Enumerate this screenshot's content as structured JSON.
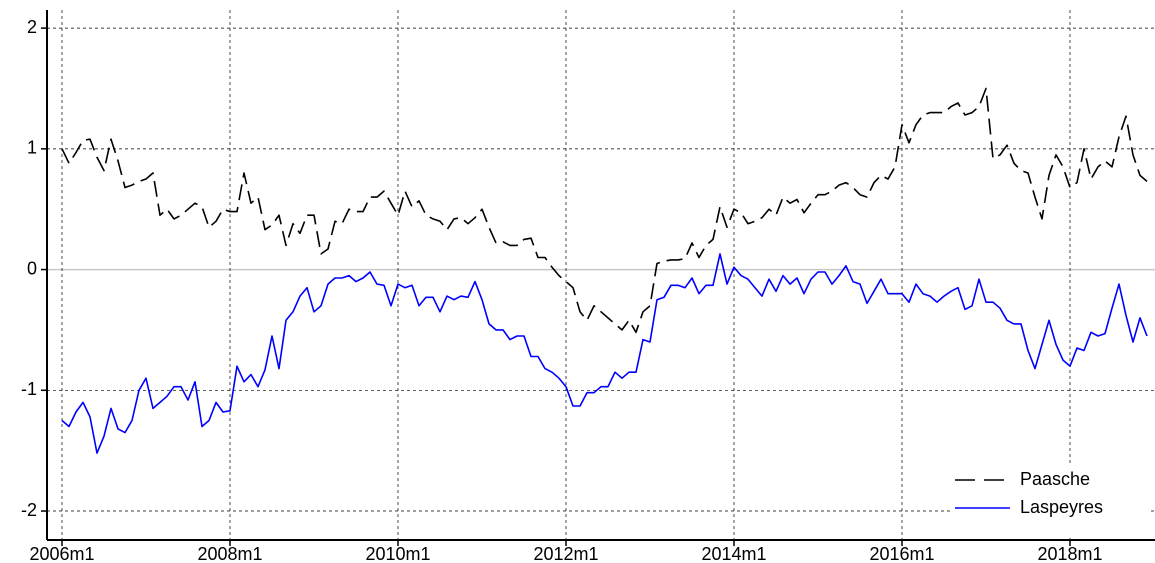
{
  "chart_data": {
    "type": "line",
    "categories": [
      "2006m1",
      null,
      null,
      null,
      null,
      null,
      null,
      null,
      null,
      null,
      null,
      null,
      null,
      null,
      null,
      null,
      null,
      null,
      null,
      null,
      null,
      null,
      null,
      null,
      "2008m1",
      null,
      null,
      null,
      null,
      null,
      null,
      null,
      null,
      null,
      null,
      null,
      null,
      null,
      null,
      null,
      null,
      null,
      null,
      null,
      null,
      null,
      null,
      null,
      "2010m1",
      null,
      null,
      null,
      null,
      null,
      null,
      null,
      null,
      null,
      null,
      null,
      null,
      null,
      null,
      null,
      null,
      null,
      null,
      null,
      null,
      null,
      null,
      null,
      "2012m1",
      null,
      null,
      null,
      null,
      null,
      null,
      null,
      null,
      null,
      null,
      null,
      null,
      null,
      null,
      null,
      null,
      null,
      null,
      null,
      null,
      null,
      null,
      null,
      "2014m1",
      null,
      null,
      null,
      null,
      null,
      null,
      null,
      null,
      null,
      null,
      null,
      null,
      null,
      null,
      null,
      null,
      null,
      null,
      null,
      null,
      null,
      null,
      null,
      "2016m1",
      null,
      null,
      null,
      null,
      null,
      null,
      null,
      null,
      null,
      null,
      null,
      null,
      null,
      null,
      null,
      null,
      null,
      null,
      null,
      null,
      null,
      null,
      null,
      "2018m1",
      null,
      null,
      null,
      null,
      null,
      null,
      null,
      null,
      null,
      null,
      null
    ],
    "series": [
      {
        "name": "Paasche",
        "color": "#000000",
        "line_style": "dashed",
        "values": [
          1.0,
          0.88,
          0.97,
          1.07,
          1.08,
          0.93,
          0.82,
          1.08,
          0.9,
          0.68,
          0.7,
          0.73,
          0.75,
          0.8,
          0.45,
          0.5,
          0.42,
          0.45,
          0.5,
          0.55,
          0.52,
          0.35,
          0.4,
          0.5,
          0.48,
          0.48,
          0.8,
          0.55,
          0.6,
          0.33,
          0.37,
          0.45,
          0.2,
          0.38,
          0.3,
          0.45,
          0.45,
          0.13,
          0.17,
          0.4,
          0.38,
          0.5,
          0.48,
          0.48,
          0.6,
          0.6,
          0.65,
          0.55,
          0.45,
          0.65,
          0.52,
          0.57,
          0.45,
          0.42,
          0.4,
          0.33,
          0.42,
          0.43,
          0.38,
          0.43,
          0.5,
          0.35,
          0.22,
          0.23,
          0.2,
          0.2,
          0.25,
          0.26,
          0.1,
          0.1,
          0.02,
          -0.05,
          -0.1,
          -0.15,
          -0.35,
          -0.42,
          -0.3,
          -0.35,
          -0.4,
          -0.45,
          -0.5,
          -0.42,
          -0.52,
          -0.35,
          -0.3,
          0.05,
          0.07,
          0.08,
          0.08,
          0.09,
          0.22,
          0.1,
          0.2,
          0.25,
          0.52,
          0.35,
          0.5,
          0.47,
          0.38,
          0.4,
          0.43,
          0.5,
          0.45,
          0.6,
          0.55,
          0.58,
          0.47,
          0.55,
          0.62,
          0.62,
          0.65,
          0.7,
          0.72,
          0.68,
          0.62,
          0.6,
          0.72,
          0.78,
          0.75,
          0.85,
          1.2,
          1.05,
          1.2,
          1.28,
          1.3,
          1.3,
          1.3,
          1.35,
          1.38,
          1.28,
          1.3,
          1.35,
          1.5,
          0.92,
          0.95,
          1.03,
          0.88,
          0.82,
          0.8,
          0.6,
          0.42,
          0.78,
          0.95,
          0.85,
          0.68,
          0.72,
          1.0,
          0.75,
          0.85,
          0.9,
          0.85,
          1.1,
          1.27,
          0.95,
          0.78,
          0.73
        ]
      },
      {
        "name": "Laspeyres",
        "color": "#0000ff",
        "line_style": "solid",
        "values": [
          -1.25,
          -1.3,
          -1.18,
          -1.1,
          -1.22,
          -1.52,
          -1.38,
          -1.15,
          -1.32,
          -1.35,
          -1.25,
          -1.0,
          -0.9,
          -1.15,
          -1.1,
          -1.05,
          -0.97,
          -0.97,
          -1.08,
          -0.93,
          -1.3,
          -1.25,
          -1.1,
          -1.18,
          -1.17,
          -0.8,
          -0.93,
          -0.87,
          -0.97,
          -0.83,
          -0.55,
          -0.82,
          -0.42,
          -0.35,
          -0.22,
          -0.15,
          -0.35,
          -0.3,
          -0.12,
          -0.07,
          -0.07,
          -0.05,
          -0.1,
          -0.07,
          -0.02,
          -0.12,
          -0.13,
          -0.3,
          -0.12,
          -0.15,
          -0.13,
          -0.3,
          -0.23,
          -0.23,
          -0.35,
          -0.22,
          -0.25,
          -0.22,
          -0.23,
          -0.1,
          -0.25,
          -0.45,
          -0.5,
          -0.5,
          -0.58,
          -0.55,
          -0.55,
          -0.72,
          -0.72,
          -0.82,
          -0.85,
          -0.9,
          -0.97,
          -1.13,
          -1.13,
          -1.02,
          -1.02,
          -0.97,
          -0.97,
          -0.85,
          -0.9,
          -0.85,
          -0.85,
          -0.58,
          -0.6,
          -0.25,
          -0.23,
          -0.13,
          -0.13,
          -0.15,
          -0.07,
          -0.2,
          -0.13,
          -0.13,
          0.13,
          -0.12,
          0.02,
          -0.05,
          -0.08,
          -0.15,
          -0.22,
          -0.08,
          -0.18,
          -0.05,
          -0.12,
          -0.07,
          -0.2,
          -0.08,
          -0.02,
          -0.02,
          -0.12,
          -0.05,
          0.03,
          -0.1,
          -0.12,
          -0.28,
          -0.18,
          -0.08,
          -0.2,
          -0.2,
          -0.2,
          -0.27,
          -0.12,
          -0.2,
          -0.22,
          -0.27,
          -0.22,
          -0.18,
          -0.15,
          -0.33,
          -0.3,
          -0.08,
          -0.27,
          -0.27,
          -0.32,
          -0.42,
          -0.45,
          -0.45,
          -0.67,
          -0.82,
          -0.62,
          -0.42,
          -0.62,
          -0.75,
          -0.8,
          -0.65,
          -0.67,
          -0.52,
          -0.55,
          -0.53,
          -0.32,
          -0.12,
          -0.38,
          -0.6,
          -0.4,
          -0.55
        ]
      }
    ],
    "ylim": [
      -2.24,
      2.15
    ],
    "yticks": [
      2,
      1,
      0,
      -1,
      -2
    ],
    "grid": true,
    "zero_line": true,
    "legend": "lower right"
  }
}
